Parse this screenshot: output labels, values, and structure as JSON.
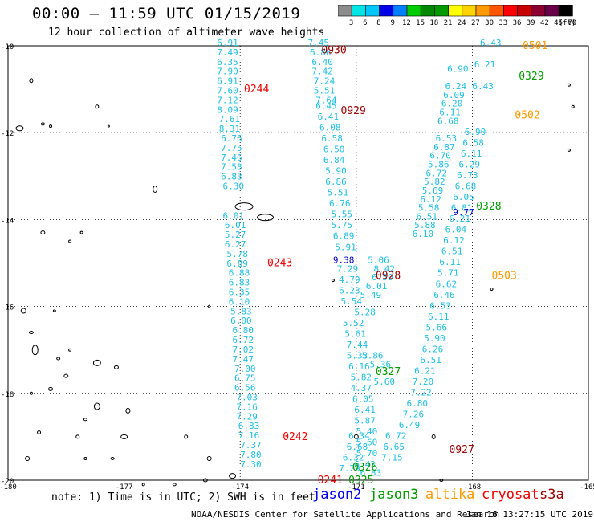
{
  "title": "00:00 – 11:59 UTC 01/15/2019",
  "subtitle": "12 hour collection of altimeter wave heights",
  "colorbar": {
    "unit": "(ft)",
    "ticks": [
      "3",
      "6",
      "8",
      "9",
      "12",
      "15",
      "18",
      "21",
      "24",
      "27",
      "30",
      "33",
      "36",
      "39",
      "42",
      "45",
      "70"
    ],
    "colors": [
      "#8c8c8c",
      "#00e5e5",
      "#00c8ff",
      "#0000e6",
      "#0080ff",
      "#00cc00",
      "#008800",
      "#009900",
      "#ffff00",
      "#ffd200",
      "#ff9900",
      "#ff5500",
      "#ff0000",
      "#c80000",
      "#8b0030",
      "#6a004a",
      "#000000"
    ]
  },
  "axes": {
    "lat_labels": [
      "-10",
      "-12",
      "-14",
      "-16",
      "-18",
      "-20"
    ],
    "lon_labels": [
      "-180",
      "-177",
      "-174",
      "-171",
      "-168",
      "-165"
    ],
    "lat_values": [
      -10,
      -12,
      -14,
      -16,
      -18,
      -20
    ],
    "lon_values": [
      -180,
      -177,
      -174,
      -171,
      -168,
      -165
    ]
  },
  "note": "note: 1) Time is in UTC; 2) SWH is in feet",
  "satellites": [
    {
      "name": "jason2",
      "color": "#0000ee"
    },
    {
      "name": "jason3",
      "color": "#009900"
    },
    {
      "name": "altika",
      "color": "#ff9900"
    },
    {
      "name": "cryosat",
      "color": "#ee0000"
    },
    {
      "name": "s3a",
      "color": "#990000"
    }
  ],
  "credit": "NOAA/NESDIS Center for Satellite Applications and Research",
  "stamp": "Jan 16 13:27:15 UTC 2019",
  "time_labels": [
    {
      "text": "0930",
      "lon": -171.9,
      "lat": -10.1,
      "color": "#990000"
    },
    {
      "text": "0501",
      "lon": -166.7,
      "lat": -10.0,
      "color": "#ff9900"
    },
    {
      "text": "0329",
      "lon": -166.8,
      "lat": -10.7,
      "color": "#009900"
    },
    {
      "text": "0244",
      "lon": -173.9,
      "lat": -11.0,
      "color": "#ee0000"
    },
    {
      "text": "0929",
      "lon": -171.4,
      "lat": -11.5,
      "color": "#990000"
    },
    {
      "text": "0502",
      "lon": -166.9,
      "lat": -11.6,
      "color": "#ff9900"
    },
    {
      "text": "0328",
      "lon": -167.9,
      "lat": -13.7,
      "color": "#009900"
    },
    {
      "text": "0243",
      "lon": -173.3,
      "lat": -15.0,
      "color": "#ee0000"
    },
    {
      "text": "0928",
      "lon": -170.5,
      "lat": -15.3,
      "color": "#990000"
    },
    {
      "text": "0503",
      "lon": -167.5,
      "lat": -15.3,
      "color": "#ff9900"
    },
    {
      "text": "0327",
      "lon": -170.5,
      "lat": -17.5,
      "color": "#009900"
    },
    {
      "text": "0242",
      "lon": -172.9,
      "lat": -19.0,
      "color": "#ee0000"
    },
    {
      "text": "0927",
      "lon": -168.6,
      "lat": -19.3,
      "color": "#990000"
    },
    {
      "text": "0326",
      "lon": -171.1,
      "lat": -19.7,
      "color": "#009900"
    },
    {
      "text": "0241",
      "lon": -172.0,
      "lat": -20.0,
      "color": "#ee0000"
    },
    {
      "text": "0325",
      "lon": -171.2,
      "lat": -20.0,
      "color": "#009900"
    }
  ],
  "tracks": [
    {
      "name": "track-0244",
      "points": [
        {
          "v": "6.91",
          "lon": -174.6,
          "lat": -10.0
        },
        {
          "v": "7.49",
          "lon": -174.6,
          "lat": -10.22
        },
        {
          "v": "6.35",
          "lon": -174.6,
          "lat": -10.44
        },
        {
          "v": "7.90",
          "lon": -174.6,
          "lat": -10.66
        },
        {
          "v": "6.91",
          "lon": -174.6,
          "lat": -10.88
        },
        {
          "v": "7.60",
          "lon": -174.6,
          "lat": -11.1
        },
        {
          "v": "7.12",
          "lon": -174.6,
          "lat": -11.32
        },
        {
          "v": "8.09",
          "lon": -174.6,
          "lat": -11.54
        },
        {
          "v": "7.61",
          "lon": -174.55,
          "lat": -11.76
        },
        {
          "v": "8.31",
          "lon": -174.55,
          "lat": -11.98
        },
        {
          "v": "6.76",
          "lon": -174.5,
          "lat": -12.2
        },
        {
          "v": "7.75",
          "lon": -174.5,
          "lat": -12.42
        },
        {
          "v": "7.46",
          "lon": -174.5,
          "lat": -12.64
        },
        {
          "v": "7.58",
          "lon": -174.5,
          "lat": -12.86
        },
        {
          "v": "6.83",
          "lon": -174.5,
          "lat": -13.08
        },
        {
          "v": "6.30",
          "lon": -174.45,
          "lat": -13.3
        },
        {
          "v": "6.01",
          "lon": -174.45,
          "lat": -13.98
        },
        {
          "v": "6.01",
          "lon": -174.4,
          "lat": -14.2
        },
        {
          "v": "5.27",
          "lon": -174.4,
          "lat": -14.42
        },
        {
          "v": "6.27",
          "lon": -174.4,
          "lat": -14.64
        },
        {
          "v": "5.78",
          "lon": -174.35,
          "lat": -14.86
        },
        {
          "v": "6.89",
          "lon": -174.35,
          "lat": -15.08
        },
        {
          "v": "6.88",
          "lon": -174.3,
          "lat": -15.3
        },
        {
          "v": "6.83",
          "lon": -174.3,
          "lat": -15.52
        },
        {
          "v": "6.35",
          "lon": -174.3,
          "lat": -15.74
        },
        {
          "v": "6.10",
          "lon": -174.3,
          "lat": -15.96
        },
        {
          "v": "5.83",
          "lon": -174.25,
          "lat": -16.18
        },
        {
          "v": "6.00",
          "lon": -174.25,
          "lat": -16.4
        },
        {
          "v": "6.80",
          "lon": -174.2,
          "lat": -16.62
        },
        {
          "v": "6.72",
          "lon": -174.2,
          "lat": -16.84
        },
        {
          "v": "7.02",
          "lon": -174.2,
          "lat": -17.06
        },
        {
          "v": "7.47",
          "lon": -174.2,
          "lat": -17.28
        },
        {
          "v": "7.00",
          "lon": -174.15,
          "lat": -17.5
        },
        {
          "v": "6.75",
          "lon": -174.15,
          "lat": -17.72
        },
        {
          "v": "6.56",
          "lon": -174.15,
          "lat": -17.94
        },
        {
          "v": "7.03",
          "lon": -174.1,
          "lat": -18.16
        },
        {
          "v": "7.16",
          "lon": -174.1,
          "lat": -18.38
        },
        {
          "v": "7.29",
          "lon": -174.1,
          "lat": -18.6
        },
        {
          "v": "6.83",
          "lon": -174.05,
          "lat": -18.82
        },
        {
          "v": "7.16",
          "lon": -174.05,
          "lat": -19.04
        },
        {
          "v": "7.37",
          "lon": -174.0,
          "lat": -19.26
        },
        {
          "v": "7.80",
          "lon": -174.0,
          "lat": -19.48
        },
        {
          "v": "7.30",
          "lon": -174.0,
          "lat": -19.7
        }
      ]
    },
    {
      "name": "track-0930",
      "points": [
        {
          "v": "7.45",
          "lon": -172.25,
          "lat": -10.0
        },
        {
          "v": "6.86",
          "lon": -172.2,
          "lat": -10.22
        },
        {
          "v": "6.40",
          "lon": -172.15,
          "lat": -10.44
        },
        {
          "v": "7.42",
          "lon": -172.15,
          "lat": -10.66
        },
        {
          "v": "7.24",
          "lon": -172.1,
          "lat": -10.88
        },
        {
          "v": "5.51",
          "lon": -172.1,
          "lat": -11.1
        },
        {
          "v": "7.64",
          "lon": -172.05,
          "lat": -11.32
        },
        {
          "v": "6.45",
          "lon": -172.05,
          "lat": -11.45
        },
        {
          "v": "6.41",
          "lon": -172.0,
          "lat": -11.7
        },
        {
          "v": "6.08",
          "lon": -171.95,
          "lat": -11.95
        },
        {
          "v": "6.58",
          "lon": -171.9,
          "lat": -12.2
        },
        {
          "v": "6.50",
          "lon": -171.85,
          "lat": -12.45
        },
        {
          "v": "6.84",
          "lon": -171.85,
          "lat": -12.7
        },
        {
          "v": "5.90",
          "lon": -171.8,
          "lat": -12.95
        },
        {
          "v": "6.86",
          "lon": -171.8,
          "lat": -13.2
        },
        {
          "v": "5.51",
          "lon": -171.75,
          "lat": -13.45
        },
        {
          "v": "6.76",
          "lon": -171.7,
          "lat": -13.7
        },
        {
          "v": "5.55",
          "lon": -171.65,
          "lat": -13.95
        },
        {
          "v": "5.75",
          "lon": -171.65,
          "lat": -14.2
        },
        {
          "v": "6.89",
          "lon": -171.6,
          "lat": -14.45
        },
        {
          "v": "5.91",
          "lon": -171.55,
          "lat": -14.7
        },
        {
          "v": "7.29",
          "lon": -171.5,
          "lat": -15.2
        },
        {
          "v": "4.79",
          "lon": -171.45,
          "lat": -15.45
        },
        {
          "v": "6.23",
          "lon": -171.45,
          "lat": -15.7
        },
        {
          "v": "5.54",
          "lon": -171.4,
          "lat": -15.95
        },
        {
          "v": "5.52",
          "lon": -171.35,
          "lat": -16.45
        },
        {
          "v": "5.61",
          "lon": -171.3,
          "lat": -16.7
        },
        {
          "v": "7.44",
          "lon": -171.25,
          "lat": -16.95
        },
        {
          "v": "5.33",
          "lon": -171.25,
          "lat": -17.2
        },
        {
          "v": "6.16",
          "lon": -171.2,
          "lat": -17.45
        },
        {
          "v": "5.82",
          "lon": -171.15,
          "lat": -17.7
        },
        {
          "v": "4.37",
          "lon": -171.15,
          "lat": -17.95
        },
        {
          "v": "6.05",
          "lon": -171.1,
          "lat": -18.2
        },
        {
          "v": "6.41",
          "lon": -171.05,
          "lat": -18.45
        },
        {
          "v": "5.87",
          "lon": -171.05,
          "lat": -18.7
        },
        {
          "v": "5.40",
          "lon": -171.0,
          "lat": -18.95
        },
        {
          "v": "5.60",
          "lon": -171.0,
          "lat": -19.2
        },
        {
          "v": "5.70",
          "lon": -171.0,
          "lat": -19.45
        },
        {
          "v": "6.43",
          "lon": -171.05,
          "lat": -19.7
        }
      ]
    },
    {
      "name": "track-0929b",
      "points": [
        {
          "v": "6.34",
          "lon": -171.2,
          "lat": -19.05
        },
        {
          "v": "6.68",
          "lon": -171.25,
          "lat": -19.3
        },
        {
          "v": "6.32",
          "lon": -171.35,
          "lat": -19.55
        },
        {
          "v": "7.29",
          "lon": -171.45,
          "lat": -19.8
        },
        {
          "v": "6.83",
          "lon": -170.9,
          "lat": -19.9
        },
        {
          "v": "7.15",
          "lon": -170.35,
          "lat": -19.55
        },
        {
          "v": "6.65",
          "lon": -170.3,
          "lat": -19.3
        },
        {
          "v": "6.72",
          "lon": -170.25,
          "lat": -19.05
        },
        {
          "v": "6.49",
          "lon": -169.9,
          "lat": -18.8
        },
        {
          "v": "7.26",
          "lon": -169.8,
          "lat": -18.55
        },
        {
          "v": "6.80",
          "lon": -169.7,
          "lat": -18.3
        },
        {
          "v": "7.22",
          "lon": -169.6,
          "lat": -18.05
        },
        {
          "v": "7.20",
          "lon": -169.55,
          "lat": -17.8
        },
        {
          "v": "6.21",
          "lon": -169.5,
          "lat": -17.55
        },
        {
          "v": "6.51",
          "lon": -169.35,
          "lat": -17.3
        },
        {
          "v": "6.26",
          "lon": -169.3,
          "lat": -17.05
        },
        {
          "v": "5.90",
          "lon": -169.25,
          "lat": -16.8
        },
        {
          "v": "5.66",
          "lon": -169.2,
          "lat": -16.55
        },
        {
          "v": "6.11",
          "lon": -169.15,
          "lat": -16.3
        },
        {
          "v": "6.53",
          "lon": -169.1,
          "lat": -16.05
        },
        {
          "v": "6.46",
          "lon": -169.0,
          "lat": -15.8
        },
        {
          "v": "6.62",
          "lon": -168.95,
          "lat": -15.55
        },
        {
          "v": "5.71",
          "lon": -168.9,
          "lat": -15.3
        },
        {
          "v": "6.11",
          "lon": -168.85,
          "lat": -15.05
        },
        {
          "v": "6.51",
          "lon": -168.8,
          "lat": -14.8
        },
        {
          "v": "6.12",
          "lon": -168.75,
          "lat": -14.55
        },
        {
          "v": "6.04",
          "lon": -168.7,
          "lat": -14.3
        },
        {
          "v": "6.21",
          "lon": -168.6,
          "lat": -14.05
        },
        {
          "v": "6.81",
          "lon": -168.55,
          "lat": -13.8
        },
        {
          "v": "6.05",
          "lon": -168.5,
          "lat": -13.55
        },
        {
          "v": "6.68",
          "lon": -168.45,
          "lat": -13.3
        },
        {
          "v": "6.73",
          "lon": -168.4,
          "lat": -13.05
        },
        {
          "v": "6.29",
          "lon": -168.35,
          "lat": -12.8
        },
        {
          "v": "6.11",
          "lon": -168.3,
          "lat": -12.55
        },
        {
          "v": "6.58",
          "lon": -168.25,
          "lat": -12.3
        },
        {
          "v": "6.90",
          "lon": -168.2,
          "lat": -12.05
        },
        {
          "v": "6.43",
          "lon": -168.0,
          "lat": -11.0
        },
        {
          "v": "6.21",
          "lon": -167.95,
          "lat": -10.5
        },
        {
          "v": "6.43",
          "lon": -167.8,
          "lat": -10.0
        }
      ]
    },
    {
      "name": "track-0502",
      "points": [
        {
          "v": "6.10",
          "lon": -169.55,
          "lat": -14.4
        },
        {
          "v": "5.88",
          "lon": -169.5,
          "lat": -14.2
        },
        {
          "v": "6.51",
          "lon": -169.45,
          "lat": -14.0
        },
        {
          "v": "5.58",
          "lon": -169.4,
          "lat": -13.8
        },
        {
          "v": "6.12",
          "lon": -169.35,
          "lat": -13.6
        },
        {
          "v": "5.69",
          "lon": -169.3,
          "lat": -13.4
        },
        {
          "v": "5.82",
          "lon": -169.25,
          "lat": -13.2
        },
        {
          "v": "6.72",
          "lon": -169.2,
          "lat": -13.0
        },
        {
          "v": "5.86",
          "lon": -169.15,
          "lat": -12.8
        },
        {
          "v": "6.70",
          "lon": -169.1,
          "lat": -12.6
        },
        {
          "v": "6.87",
          "lon": -169.0,
          "lat": -12.4
        },
        {
          "v": "6.53",
          "lon": -168.95,
          "lat": -12.2
        },
        {
          "v": "6.68",
          "lon": -168.9,
          "lat": -11.8
        },
        {
          "v": "6.11",
          "lon": -168.85,
          "lat": -11.6
        },
        {
          "v": "6.20",
          "lon": -168.8,
          "lat": -11.4
        },
        {
          "v": "6.09",
          "lon": -168.75,
          "lat": -11.2
        },
        {
          "v": "6.24",
          "lon": -168.7,
          "lat": -11.0
        },
        {
          "v": "6.90",
          "lon": -168.65,
          "lat": -10.6
        }
      ]
    },
    {
      "name": "track-0928",
      "points": [
        {
          "v": "9.38",
          "lon": -171.6,
          "lat": -15.0
        },
        {
          "v": "5.06",
          "lon": -170.7,
          "lat": -15.0
        },
        {
          "v": "8.42",
          "lon": -170.55,
          "lat": -15.2
        },
        {
          "v": "6.50",
          "lon": -170.6,
          "lat": -15.4
        },
        {
          "v": "6.01",
          "lon": -170.75,
          "lat": -15.6
        },
        {
          "v": "5.49",
          "lon": -170.9,
          "lat": -15.8
        },
        {
          "v": "5.28",
          "lon": -171.05,
          "lat": -16.2
        },
        {
          "v": "5.86",
          "lon": -170.85,
          "lat": -17.2
        },
        {
          "v": "5.36",
          "lon": -170.65,
          "lat": -17.4
        },
        {
          "v": "5.60",
          "lon": -170.55,
          "lat": -17.8
        },
        {
          "v": "9.77",
          "lon": -168.5,
          "lat": -13.9
        }
      ]
    }
  ]
}
